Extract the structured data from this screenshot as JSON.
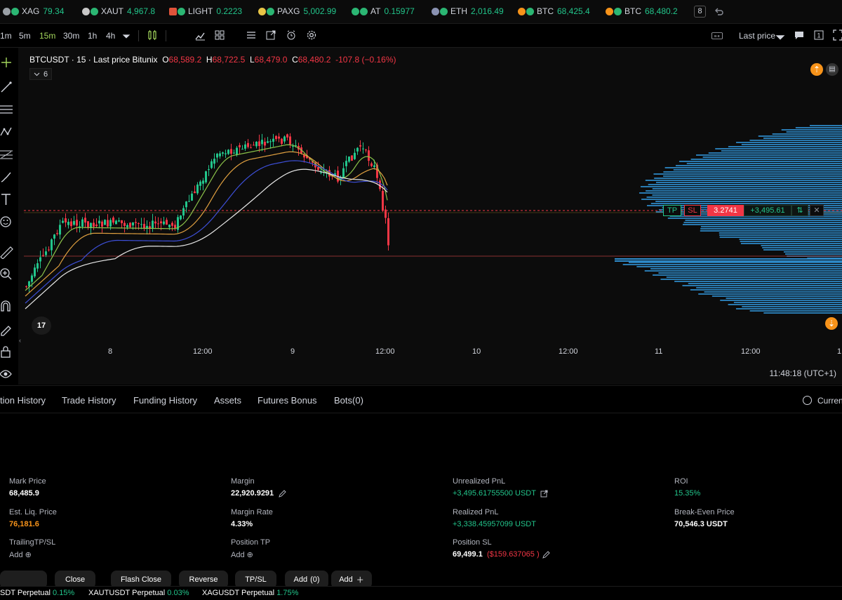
{
  "ticker": [
    {
      "icon": "xag-coin-icon",
      "sym": "XAG",
      "price": "79.34",
      "dir": "green"
    },
    {
      "icon": "xaut-coin-icon",
      "sym": "XAUT",
      "price": "4,967.8",
      "dir": "green"
    },
    {
      "icon": "light-coin-icon",
      "sym": "LIGHT",
      "price": "0.2223",
      "dir": "green"
    },
    {
      "icon": "paxg-coin-icon",
      "sym": "PAXG",
      "price": "5,002.99",
      "dir": "green"
    },
    {
      "icon": "at-coin-icon",
      "sym": "AT",
      "price": "0.15977",
      "dir": "green"
    },
    {
      "icon": "eth-coin-icon",
      "sym": "ETH",
      "price": "2,016.49",
      "dir": "green"
    },
    {
      "icon": "btc-coin-icon",
      "sym": "BTC",
      "price": "68,425.4",
      "dir": "green"
    },
    {
      "icon": "btc-coin-icon",
      "sym": "BTC",
      "price": "68,480.2",
      "dir": "green"
    }
  ],
  "ticker_badge": "8",
  "toolbar": {
    "timeframes": [
      "1m",
      "5m",
      "15m",
      "30m",
      "1h",
      "4h"
    ],
    "active_timeframe": "15m",
    "price_type": "Last price"
  },
  "chart": {
    "symbol_line": "BTCUSDT · 15 · Last price Bitunix",
    "o_label": "O",
    "o_value": "68,589.2",
    "h_label": "H",
    "h_value": "68,722.5",
    "l_label": "L",
    "l_value": "68,479.0",
    "c_label": "C",
    "c_value": "68,480.2",
    "change": "-107.8 (−0.16%)",
    "indicators_count": "6",
    "tp_label": "TP",
    "sl_label": "SL",
    "position_qty": "3.2741",
    "position_pnl": "+3,495.61",
    "x_ticks": [
      "8",
      "12:00",
      "9",
      "12:00",
      "10",
      "12:00",
      "11",
      "12:00",
      "1"
    ],
    "time_display": "11:48:18 (UTC+1)"
  },
  "panel": {
    "tabs": [
      "tion History",
      "Trade History",
      "Funding History",
      "Assets",
      "Futures Bonus",
      "Bots(0)"
    ],
    "current_label": "Current",
    "fields": {
      "mark_price_label": "Mark Price",
      "mark_price": "68,485.9",
      "liq_label": "Est. Liq. Price",
      "liq_price": "76,181.6",
      "trailing_label": "TrailingTP/SL",
      "trailing_add": "Add",
      "margin_label": "Margin",
      "margin": "22,920.9291",
      "margin_rate_label": "Margin Rate",
      "margin_rate": "4.33%",
      "position_tp_label": "Position TP",
      "position_tp_add": "Add",
      "upnl_label": "Unrealized PnL",
      "upnl": "+3,495.61755500 USDT",
      "rpnl_label": "Realized PnL",
      "rpnl": "+3,338.45957099 USDT",
      "position_sl_label": "Position SL",
      "position_sl": "69,499.1",
      "position_sl_loss": "($159.637065 )",
      "roi_label": "ROI",
      "roi": "15.35%",
      "be_label": "Break-Even Price",
      "be_price": "70,546.3 USDT"
    },
    "buttons": {
      "close": "Close",
      "flash_close": "Flash Close",
      "reverse": "Reverse",
      "tpsl": "TP/SL",
      "add_orders": "Add",
      "add_orders_count": "(0)",
      "add": "Add"
    }
  },
  "bottom_bar": [
    {
      "sym": "SDT Perpetual",
      "chg": "0.15%"
    },
    {
      "sym": "XAUTUSDT Perpetual",
      "chg": "0.03%"
    },
    {
      "sym": "XAGUSDT Perpetual",
      "chg": "1.75%"
    }
  ],
  "colors": {
    "up": "#22c58b",
    "down": "#f23645",
    "accent": "#f7931a",
    "profile": "#2f8ecf"
  }
}
